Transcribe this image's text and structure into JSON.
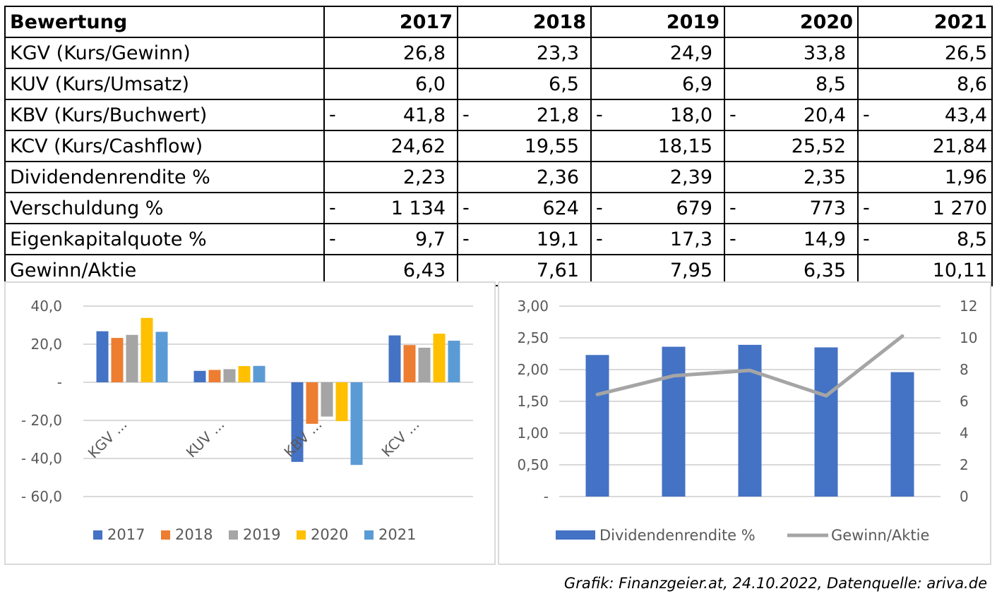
{
  "table": {
    "header": [
      "Bewertung",
      "2017",
      "2018",
      "2019",
      "2020",
      "2021"
    ],
    "rows": [
      {
        "label": "KGV (Kurs/Gewinn)",
        "cells": [
          {
            "d": "",
            "v": "26,8"
          },
          {
            "d": "",
            "v": "23,3"
          },
          {
            "d": "",
            "v": "24,9"
          },
          {
            "d": "",
            "v": "33,8"
          },
          {
            "d": "",
            "v": "26,5"
          }
        ]
      },
      {
        "label": "KUV (Kurs/Umsatz)",
        "cells": [
          {
            "d": "",
            "v": "6,0"
          },
          {
            "d": "",
            "v": "6,5"
          },
          {
            "d": "",
            "v": "6,9"
          },
          {
            "d": "",
            "v": "8,5"
          },
          {
            "d": "",
            "v": "8,6"
          }
        ]
      },
      {
        "label": "KBV (Kurs/Buchwert)",
        "cells": [
          {
            "d": "-",
            "v": "41,8"
          },
          {
            "d": "-",
            "v": "21,8"
          },
          {
            "d": "-",
            "v": "18,0"
          },
          {
            "d": "-",
            "v": "20,4"
          },
          {
            "d": "-",
            "v": "43,4"
          }
        ]
      },
      {
        "label": "KCV (Kurs/Cashflow)",
        "cells": [
          {
            "d": "",
            "v": "24,62"
          },
          {
            "d": "",
            "v": "19,55"
          },
          {
            "d": "",
            "v": "18,15"
          },
          {
            "d": "",
            "v": "25,52"
          },
          {
            "d": "",
            "v": "21,84"
          }
        ]
      },
      {
        "label": "Dividendenrendite %",
        "cells": [
          {
            "d": "",
            "v": "2,23"
          },
          {
            "d": "",
            "v": "2,36"
          },
          {
            "d": "",
            "v": "2,39"
          },
          {
            "d": "",
            "v": "2,35"
          },
          {
            "d": "",
            "v": "1,96"
          }
        ]
      },
      {
        "label": "Verschuldung %",
        "cells": [
          {
            "d": "-",
            "v": "1 134"
          },
          {
            "d": "-",
            "v": "624"
          },
          {
            "d": "-",
            "v": "679"
          },
          {
            "d": "-",
            "v": "773"
          },
          {
            "d": "-",
            "v": "1 270"
          }
        ]
      },
      {
        "label": "Eigenkapitalquote %",
        "cells": [
          {
            "d": "-",
            "v": "9,7"
          },
          {
            "d": "-",
            "v": "19,1"
          },
          {
            "d": "-",
            "v": "17,3"
          },
          {
            "d": "-",
            "v": "14,9"
          },
          {
            "d": "-",
            "v": "8,5"
          }
        ]
      },
      {
        "label": "Gewinn/Aktie",
        "cells": [
          {
            "d": "",
            "v": "6,43"
          },
          {
            "d": "",
            "v": "7,61"
          },
          {
            "d": "",
            "v": "7,95"
          },
          {
            "d": "",
            "v": "6,35"
          },
          {
            "d": "",
            "v": "10,11"
          }
        ]
      }
    ]
  },
  "chart_data": [
    {
      "type": "bar",
      "categories": [
        "KGV ...",
        "KUV ...",
        "KBV ...",
        "KCV ..."
      ],
      "series": [
        {
          "name": "2017",
          "color": "#4472c4",
          "values": [
            26.8,
            6.0,
            -41.8,
            24.62
          ]
        },
        {
          "name": "2018",
          "color": "#ed7d31",
          "values": [
            23.3,
            6.5,
            -21.8,
            19.55
          ]
        },
        {
          "name": "2019",
          "color": "#a5a5a5",
          "values": [
            24.9,
            6.9,
            -18.0,
            18.15
          ]
        },
        {
          "name": "2020",
          "color": "#ffc000",
          "values": [
            33.8,
            8.5,
            -20.4,
            25.52
          ]
        },
        {
          "name": "2021",
          "color": "#5b9bd5",
          "values": [
            26.5,
            8.6,
            -43.4,
            21.84
          ]
        }
      ],
      "ylim": [
        -60,
        40
      ],
      "yticks": [
        40,
        20,
        0,
        -20,
        -40,
        -60
      ],
      "ytick_labels": [
        "40,0",
        "20,0",
        "-",
        "- 20,0",
        "- 40,0",
        "- 60,0"
      ],
      "grid": true,
      "legend": "bottom"
    },
    {
      "type": "bar",
      "categories": [
        "2017",
        "2018",
        "2019",
        "2020",
        "2021"
      ],
      "series": [
        {
          "name": "Dividendenrendite %",
          "type": "bar",
          "axis": "left",
          "color": "#4472c4",
          "values": [
            2.23,
            2.36,
            2.39,
            2.35,
            1.96
          ]
        },
        {
          "name": "Gewinn/Aktie",
          "type": "line",
          "axis": "right",
          "color": "#a5a5a5",
          "values": [
            6.43,
            7.61,
            7.95,
            6.35,
            10.11
          ]
        }
      ],
      "ylim": [
        0,
        3
      ],
      "yticks": [
        3,
        2.5,
        2,
        1.5,
        1,
        0.5,
        0
      ],
      "ytick_labels": [
        "3,00",
        "2,50",
        "2,00",
        "1,50",
        "1,00",
        "0,50",
        "-"
      ],
      "y2lim": [
        0,
        12
      ],
      "y2ticks": [
        12,
        10,
        8,
        6,
        4,
        2,
        0
      ],
      "y2tick_labels": [
        "12",
        "10",
        "8",
        "6",
        "4",
        "2",
        "0"
      ],
      "grid": true,
      "legend": "bottom"
    }
  ],
  "caption": "Grafik: Finanzgeier.at, 24.10.2022, Datenquelle: ariva.de"
}
